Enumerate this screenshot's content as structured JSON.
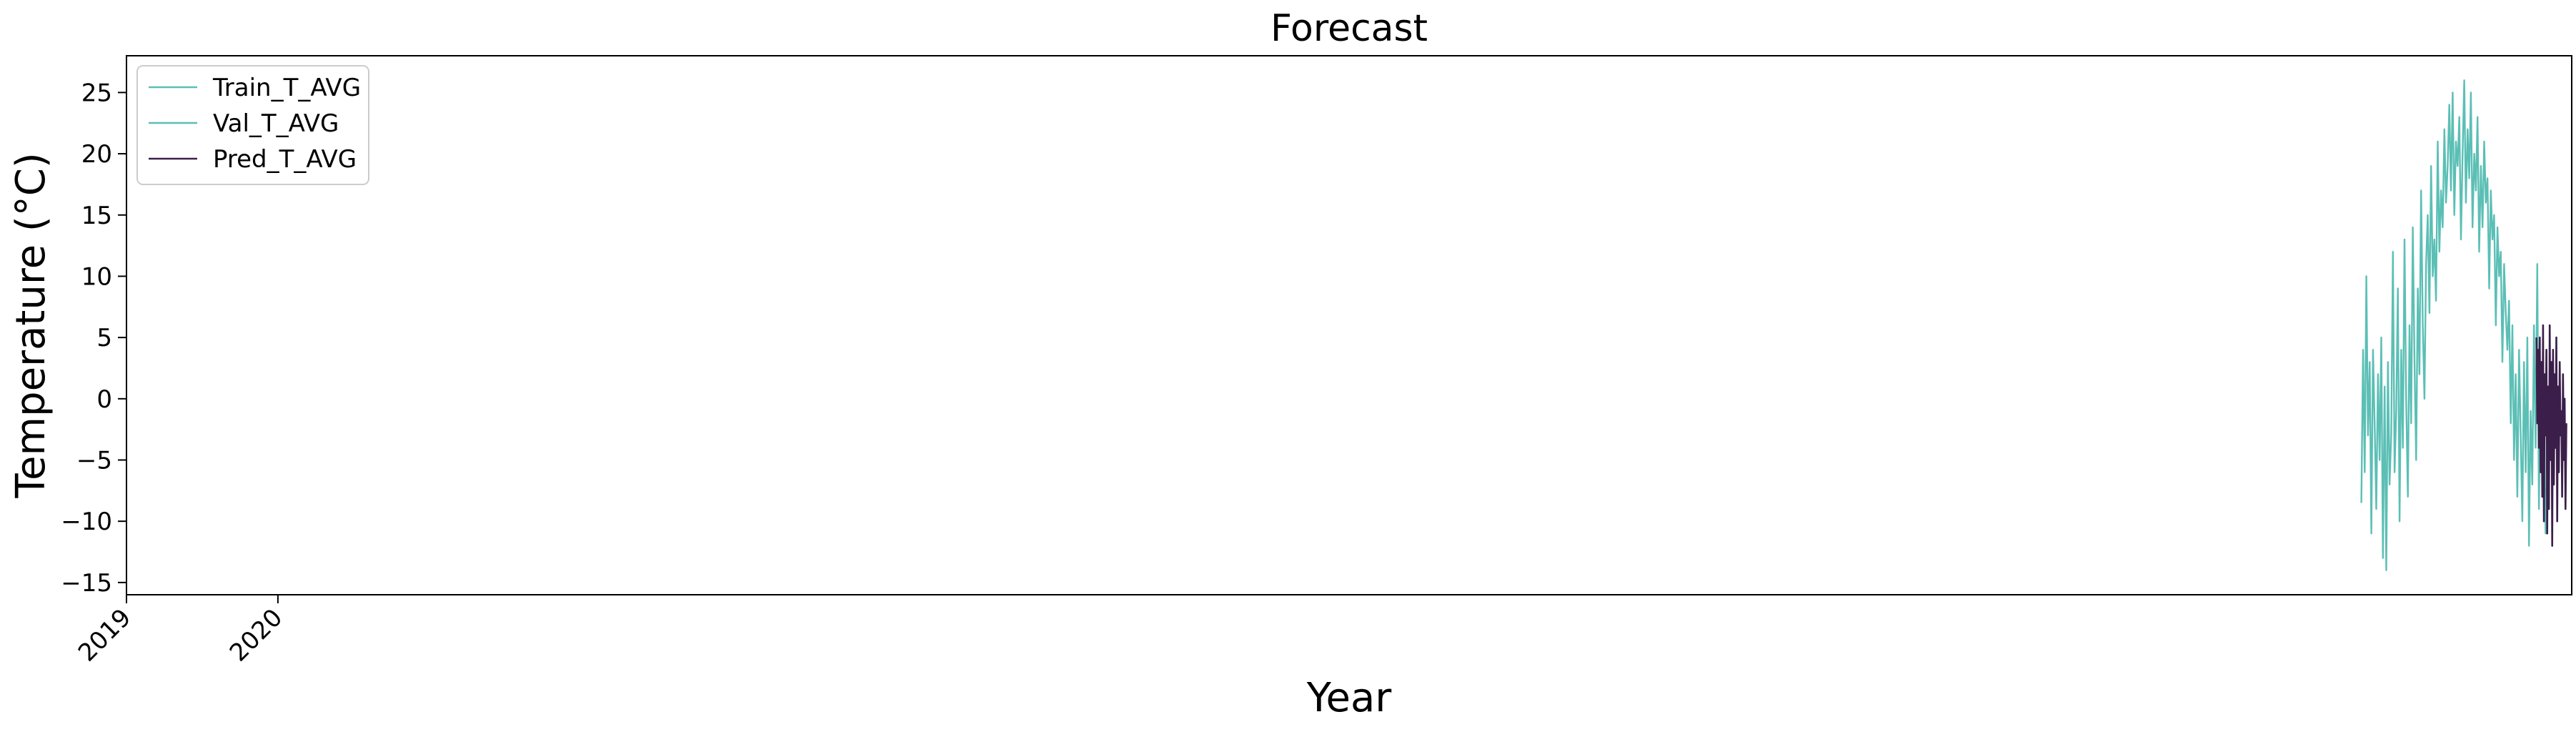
{
  "chart_data": {
    "type": "line",
    "title": "Forecast",
    "xlabel": "Year",
    "ylabel": "Temperature (°C)",
    "x_ticks": [
      "2019",
      "2020"
    ],
    "xlim": [
      "2019-01-01",
      "2035-02-20"
    ],
    "ylim": [
      -16,
      28
    ],
    "y_ticks": [
      -15,
      -10,
      -5,
      0,
      5,
      10,
      15,
      20,
      25
    ],
    "grid": false,
    "legend_position": "top-left",
    "series": [
      {
        "name": "Train_T_AVG",
        "color": "#5bbfb5",
        "x": [
          "2033-10-01",
          "2033-10-05",
          "2033-10-09",
          "2033-10-13",
          "2033-10-17",
          "2033-10-21",
          "2033-10-25",
          "2033-10-29",
          "2033-11-02",
          "2033-11-06",
          "2033-11-10",
          "2033-11-14",
          "2033-11-18",
          "2033-11-22",
          "2033-11-26",
          "2033-11-30",
          "2033-12-04",
          "2033-12-08",
          "2033-12-12",
          "2033-12-16",
          "2033-12-20",
          "2033-12-24",
          "2033-12-28",
          "2034-01-01",
          "2034-01-05",
          "2034-01-09",
          "2034-01-13",
          "2034-01-17",
          "2034-01-21",
          "2034-01-25",
          "2034-01-29",
          "2034-02-02",
          "2034-02-06",
          "2034-02-10",
          "2034-02-14",
          "2034-02-18",
          "2034-02-22",
          "2034-02-26",
          "2034-03-02",
          "2034-03-06",
          "2034-03-10",
          "2034-03-14",
          "2034-03-18",
          "2034-03-22",
          "2034-03-26",
          "2034-03-30",
          "2034-04-03",
          "2034-04-07",
          "2034-04-11",
          "2034-04-15",
          "2034-04-19",
          "2034-04-23",
          "2034-04-27",
          "2034-05-01",
          "2034-05-05",
          "2034-05-09",
          "2034-05-13",
          "2034-05-17",
          "2034-05-21",
          "2034-05-25",
          "2034-05-29",
          "2034-06-02",
          "2034-06-06",
          "2034-06-10",
          "2034-06-14",
          "2034-06-18",
          "2034-06-22",
          "2034-06-26",
          "2034-06-30",
          "2034-07-04",
          "2034-07-08",
          "2034-07-12",
          "2034-07-16",
          "2034-07-20",
          "2034-07-24",
          "2034-07-28",
          "2034-08-01",
          "2034-08-05",
          "2034-08-09",
          "2034-08-13",
          "2034-08-17",
          "2034-08-21",
          "2034-08-25",
          "2034-08-29",
          "2034-09-02",
          "2034-09-06",
          "2034-09-10",
          "2034-09-14",
          "2034-09-18",
          "2034-09-22",
          "2034-09-26",
          "2034-09-30",
          "2034-10-04",
          "2034-10-08",
          "2034-10-12",
          "2034-10-16",
          "2034-10-20",
          "2034-10-24",
          "2034-10-28",
          "2034-11-01",
          "2034-11-05",
          "2034-11-09",
          "2034-11-13",
          "2034-11-17",
          "2034-11-21",
          "2034-11-25",
          "2034-11-29",
          "2034-12-03",
          "2034-12-07",
          "2034-12-11",
          "2034-12-15",
          "2034-12-19",
          "2034-12-23",
          "2034-12-27"
        ],
        "values": [
          -8.5,
          4,
          -6,
          10,
          -3,
          3,
          -11,
          4,
          -2,
          -9,
          2,
          -5,
          5,
          -13,
          1,
          -14,
          3,
          -7,
          -3,
          12,
          -6,
          -1,
          9,
          -10,
          4,
          -4,
          13,
          0,
          -8,
          6,
          -2,
          14,
          3,
          -5,
          9,
          2,
          17,
          6,
          0,
          11,
          15,
          7,
          19,
          10,
          13,
          8,
          21,
          12,
          17,
          14,
          22,
          16,
          19,
          24,
          17,
          25,
          15,
          21,
          19,
          23,
          13,
          20,
          26,
          16,
          22,
          18,
          25,
          14,
          20,
          17,
          23,
          12,
          19,
          14,
          21,
          16,
          18,
          9,
          17,
          13,
          15,
          6,
          14,
          10,
          12,
          3,
          11,
          7,
          4,
          8,
          -2,
          6,
          -5,
          2,
          -8,
          4,
          -3,
          -10,
          3,
          -6,
          5,
          -12,
          -1,
          -7,
          6,
          -4,
          11,
          -9,
          2,
          -5,
          1,
          -11,
          -6,
          -2
        ]
      },
      {
        "name": "Val_T_AVG",
        "color": "#5bbfb5",
        "x": [],
        "values": []
      },
      {
        "name": "Pred_T_AVG",
        "color": "#3b1f4a",
        "x": [
          "2034-11-27",
          "2034-11-29",
          "2034-12-01",
          "2034-12-03",
          "2034-12-05",
          "2034-12-07",
          "2034-12-09",
          "2034-12-11",
          "2034-12-13",
          "2034-12-15",
          "2034-12-17",
          "2034-12-19",
          "2034-12-21",
          "2034-12-23",
          "2034-12-25",
          "2034-12-27",
          "2034-12-29",
          "2034-12-31",
          "2035-01-02",
          "2035-01-04",
          "2035-01-06",
          "2035-01-08",
          "2035-01-10",
          "2035-01-12",
          "2035-01-14",
          "2035-01-16",
          "2035-01-18",
          "2035-01-20",
          "2035-01-22",
          "2035-01-24",
          "2035-01-26",
          "2035-01-28",
          "2035-01-30",
          "2035-02-01",
          "2035-02-03",
          "2035-02-05",
          "2035-02-07"
        ],
        "values": [
          5,
          -2,
          4,
          -4,
          5,
          -6,
          3,
          -8,
          6,
          -10,
          2,
          -3,
          4,
          -11,
          1,
          -9,
          6,
          -5,
          3,
          -12,
          4,
          -7,
          2,
          -4,
          5,
          -10,
          1,
          -6,
          3,
          -3,
          -1,
          -8,
          2,
          -5,
          0,
          -9,
          -2
        ]
      }
    ]
  }
}
